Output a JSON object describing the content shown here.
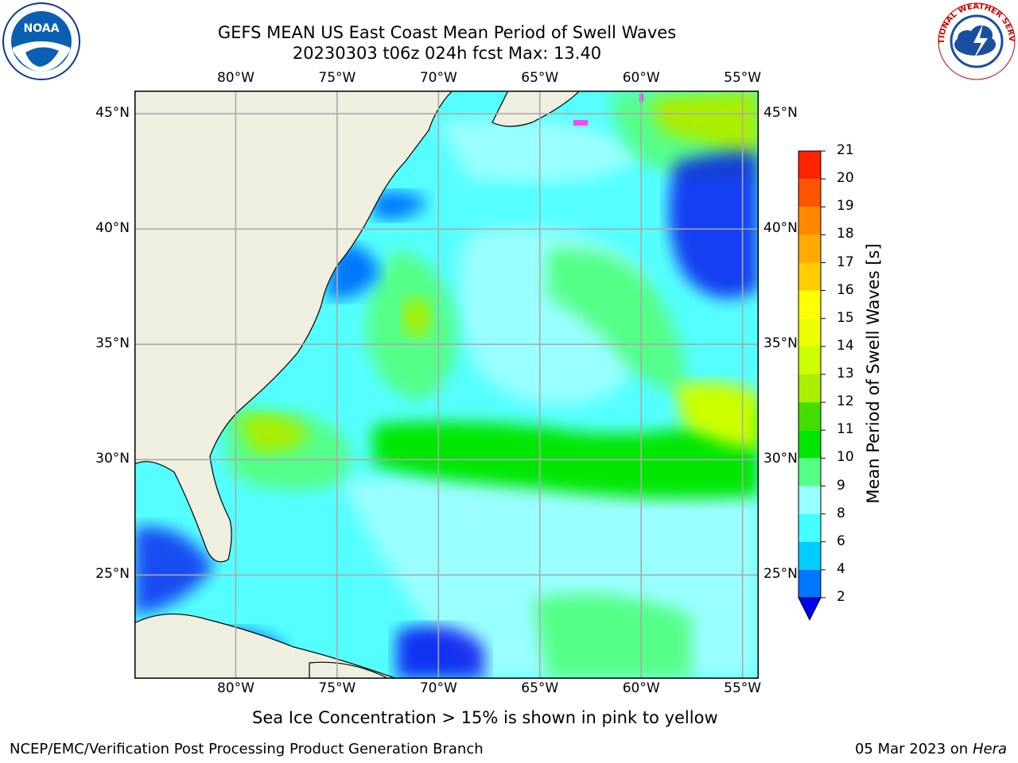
{
  "header": {
    "title_line1": "GEFS MEAN US East Coast Mean Period of Swell Waves",
    "title_line2": "20230303 t06z 024h fcst   Max: 13.40"
  },
  "logos": {
    "noaa_text": "NOAA",
    "nws_ring_text": "NATIONAL WEATHER SERVICE"
  },
  "map": {
    "lon_labels": [
      "80°W",
      "75°W",
      "70°W",
      "65°W",
      "60°W",
      "55°W"
    ],
    "lat_labels": [
      "45°N",
      "40°N",
      "35°N",
      "30°N",
      "25°N"
    ],
    "lon_ticks": [
      -80,
      -75,
      -70,
      -65,
      -60,
      -55
    ],
    "lat_ticks": [
      45,
      40,
      35,
      30,
      25
    ],
    "extent": {
      "lon_min": -85,
      "lon_max": -54.2,
      "lat_min": 20.5,
      "lat_max": 46
    },
    "land_color": "#efefdf",
    "grid_color": "#aaaaaa"
  },
  "colorbar": {
    "title": "Mean Period of Swell Waves [s]",
    "levels": [
      2,
      4,
      6,
      8,
      9,
      10,
      11,
      12,
      13,
      14,
      15,
      16,
      17,
      18,
      19,
      20,
      21
    ],
    "labels": [
      "2",
      "4",
      "6",
      "8",
      "9",
      "10",
      "11",
      "12",
      "13",
      "14",
      "15",
      "16",
      "17",
      "18",
      "19",
      "20",
      "21"
    ],
    "colors": [
      "#0077ff",
      "#00ccff",
      "#44ffff",
      "#99ffff",
      "#55ff88",
      "#00e600",
      "#44dd00",
      "#aaee00",
      "#ccff00",
      "#eeff00",
      "#ffff00",
      "#ffcc00",
      "#ffaa00",
      "#ff8800",
      "#ff5500",
      "#ff2200"
    ],
    "under_color": "#0000ee"
  },
  "footer": {
    "ice_note": "Sea Ice Concentration > 15% is shown in pink to yellow",
    "branch": "NCEP/EMC/Verification Post Processing Product Generation Branch",
    "date": "05 Mar 2023 on",
    "machine": "Hera"
  }
}
